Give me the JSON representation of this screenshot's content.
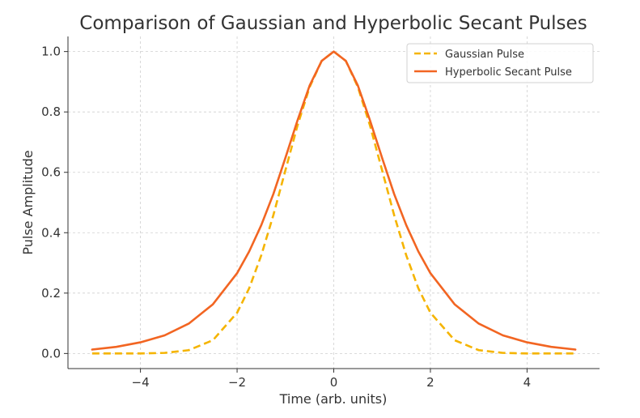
{
  "chart_data": {
    "type": "line",
    "title": "Comparison of Gaussian and Hyperbolic Secant Pulses",
    "xlabel": "Time (arb. units)",
    "ylabel": "Pulse Amplitude",
    "xlim": [
      -5.5,
      5.5
    ],
    "ylim": [
      -0.05,
      1.05
    ],
    "x_ticks": [
      -4,
      -2,
      0,
      2,
      4
    ],
    "x_tick_labels": [
      "−4",
      "−2",
      "0",
      "2",
      "4"
    ],
    "y_ticks": [
      0.0,
      0.2,
      0.4,
      0.6,
      0.8,
      1.0
    ],
    "y_tick_labels": [
      "0.0",
      "0.2",
      "0.4",
      "0.6",
      "0.8",
      "1.0"
    ],
    "grid": true,
    "legend_position": "top-right",
    "x": [
      -5.0,
      -4.5,
      -4.0,
      -3.5,
      -3.0,
      -2.5,
      -2.0,
      -1.75,
      -1.5,
      -1.25,
      -1.0,
      -0.75,
      -0.5,
      -0.25,
      0.0,
      0.25,
      0.5,
      0.75,
      1.0,
      1.25,
      1.5,
      1.75,
      2.0,
      2.5,
      3.0,
      3.5,
      4.0,
      4.5,
      5.0
    ],
    "series": [
      {
        "name": "Gaussian Pulse",
        "color": "#f5b400",
        "style": "dashed",
        "values": [
          0.0,
          0.0,
          0.0,
          0.002,
          0.011,
          0.044,
          0.135,
          0.216,
          0.325,
          0.458,
          0.607,
          0.755,
          0.882,
          0.969,
          1.0,
          0.969,
          0.882,
          0.755,
          0.607,
          0.458,
          0.325,
          0.216,
          0.135,
          0.044,
          0.011,
          0.002,
          0.0,
          0.0,
          0.0
        ]
      },
      {
        "name": "Hyperbolic Secant Pulse",
        "color": "#f26522",
        "style": "solid",
        "values": [
          0.013,
          0.022,
          0.037,
          0.06,
          0.099,
          0.163,
          0.266,
          0.338,
          0.425,
          0.528,
          0.648,
          0.772,
          0.887,
          0.969,
          1.0,
          0.969,
          0.887,
          0.772,
          0.648,
          0.528,
          0.425,
          0.338,
          0.266,
          0.163,
          0.099,
          0.06,
          0.037,
          0.022,
          0.013
        ]
      }
    ]
  }
}
